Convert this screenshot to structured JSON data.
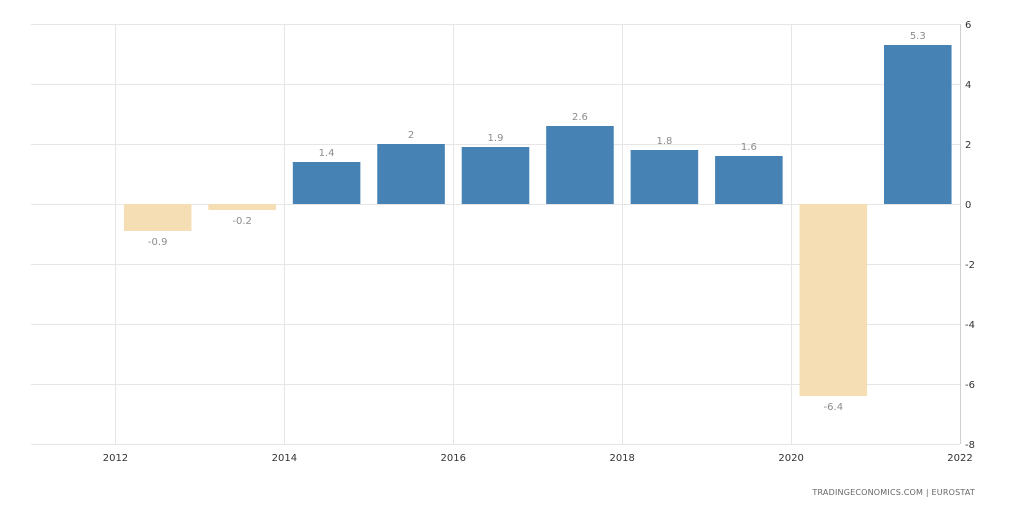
{
  "chart_data": {
    "type": "bar",
    "x": [
      2012,
      2013,
      2014,
      2015,
      2016,
      2017,
      2018,
      2019,
      2020,
      2021
    ],
    "values": [
      -0.9,
      -0.2,
      1.4,
      2,
      1.9,
      2.6,
      1.8,
      1.6,
      -6.4,
      5.3
    ],
    "value_labels": [
      "-0.9",
      "-0.2",
      "1.4",
      "2",
      "1.9",
      "2.6",
      "1.8",
      "1.6",
      "-6.4",
      "5.3"
    ],
    "x_ticks": [
      "2012",
      "2014",
      "2016",
      "2018",
      "2020",
      "2022"
    ],
    "y_ticks": [
      "6",
      "4",
      "2",
      "0",
      "-2",
      "-4",
      "-6",
      "-8"
    ],
    "ylim": [
      -8,
      6
    ],
    "xlim": [
      2011,
      2022
    ],
    "y_axis_position": "right",
    "grid": true,
    "positive_color": "#4682b4",
    "negative_color": "#f5deb3"
  },
  "source": "TRADINGECONOMICS.COM | EUROSTAT"
}
